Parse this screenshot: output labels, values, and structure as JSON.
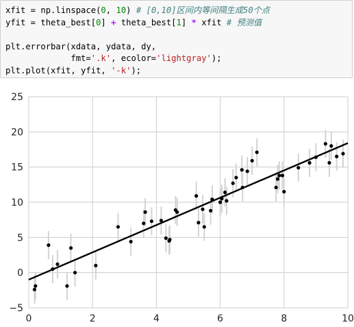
{
  "code_cell": {
    "lines": [
      {
        "tokens": [
          {
            "t": "xfit = np.linspace(",
            "c": ""
          },
          {
            "t": "0",
            "c": "num"
          },
          {
            "t": ", ",
            "c": ""
          },
          {
            "t": "10",
            "c": "num"
          },
          {
            "t": ") ",
            "c": ""
          },
          {
            "t": "# [0,10]区间内等间隔生成50个点",
            "c": "cmt"
          }
        ]
      },
      {
        "tokens": [
          {
            "t": "yfit = theta_best[",
            "c": ""
          },
          {
            "t": "0",
            "c": "num"
          },
          {
            "t": "] ",
            "c": ""
          },
          {
            "t": "+",
            "c": "op"
          },
          {
            "t": " theta_best[",
            "c": ""
          },
          {
            "t": "1",
            "c": "num"
          },
          {
            "t": "] ",
            "c": ""
          },
          {
            "t": "*",
            "c": "op"
          },
          {
            "t": " xfit ",
            "c": ""
          },
          {
            "t": "# 预测值",
            "c": "cmt"
          }
        ]
      },
      {
        "tokens": []
      },
      {
        "tokens": [
          {
            "t": "plt.errorbar(xdata, ydata, dy,",
            "c": ""
          }
        ]
      },
      {
        "tokens": [
          {
            "t": "             fmt=",
            "c": ""
          },
          {
            "t": "'.k'",
            "c": "str"
          },
          {
            "t": ", ecolor=",
            "c": ""
          },
          {
            "t": "'lightgray'",
            "c": "str"
          },
          {
            "t": ");",
            "c": ""
          }
        ]
      },
      {
        "tokens": [
          {
            "t": "plt.plot(xfit, yfit, ",
            "c": ""
          },
          {
            "t": "'-k'",
            "c": "str"
          },
          {
            "t": ");",
            "c": ""
          }
        ]
      }
    ]
  },
  "chart_data": {
    "type": "scatter",
    "title": "",
    "xlabel": "",
    "ylabel": "",
    "xlim": [
      0,
      10
    ],
    "ylim": [
      -5,
      25
    ],
    "x_ticks": [
      "0",
      "2",
      "4",
      "6",
      "8",
      "10"
    ],
    "y_ticks": [
      "−5",
      "0",
      "5",
      "10",
      "15",
      "20",
      "25"
    ],
    "grid": true,
    "colors": {
      "points": "#000000",
      "errorbars": "#d3d3d3",
      "fit_line": "#000000",
      "grid": "#cccccc"
    },
    "error_bar_half_height": 2,
    "points": [
      {
        "x": 0.18,
        "y": -2.4
      },
      {
        "x": 0.21,
        "y": -1.9
      },
      {
        "x": 0.62,
        "y": 3.9
      },
      {
        "x": 0.75,
        "y": 0.5
      },
      {
        "x": 0.9,
        "y": 1.2
      },
      {
        "x": 1.2,
        "y": -1.9
      },
      {
        "x": 1.32,
        "y": 3.5
      },
      {
        "x": 1.45,
        "y": 0.0
      },
      {
        "x": 2.1,
        "y": 1.0
      },
      {
        "x": 2.8,
        "y": 6.5
      },
      {
        "x": 3.2,
        "y": 4.4
      },
      {
        "x": 3.6,
        "y": 7.0
      },
      {
        "x": 3.65,
        "y": 8.6
      },
      {
        "x": 3.85,
        "y": 7.3
      },
      {
        "x": 4.15,
        "y": 7.4
      },
      {
        "x": 4.3,
        "y": 4.9
      },
      {
        "x": 4.4,
        "y": 4.5
      },
      {
        "x": 4.42,
        "y": 4.7
      },
      {
        "x": 4.6,
        "y": 8.9
      },
      {
        "x": 4.65,
        "y": 8.6
      },
      {
        "x": 5.25,
        "y": 10.9
      },
      {
        "x": 5.32,
        "y": 7.1
      },
      {
        "x": 5.45,
        "y": 9.0
      },
      {
        "x": 5.5,
        "y": 6.5
      },
      {
        "x": 5.7,
        "y": 8.8
      },
      {
        "x": 5.75,
        "y": 10.4
      },
      {
        "x": 6.0,
        "y": 10.0
      },
      {
        "x": 6.05,
        "y": 10.5
      },
      {
        "x": 6.15,
        "y": 11.4
      },
      {
        "x": 6.2,
        "y": 10.2
      },
      {
        "x": 6.4,
        "y": 12.7
      },
      {
        "x": 6.5,
        "y": 13.5
      },
      {
        "x": 6.68,
        "y": 14.6
      },
      {
        "x": 6.7,
        "y": 12.1
      },
      {
        "x": 6.85,
        "y": 14.4
      },
      {
        "x": 7.0,
        "y": 15.9
      },
      {
        "x": 7.15,
        "y": 17.1
      },
      {
        "x": 7.75,
        "y": 12.1
      },
      {
        "x": 7.8,
        "y": 13.3
      },
      {
        "x": 7.85,
        "y": 13.8
      },
      {
        "x": 7.95,
        "y": 13.8
      },
      {
        "x": 8.0,
        "y": 11.5
      },
      {
        "x": 8.45,
        "y": 14.9
      },
      {
        "x": 8.8,
        "y": 15.6
      },
      {
        "x": 9.0,
        "y": 16.4
      },
      {
        "x": 9.3,
        "y": 18.3
      },
      {
        "x": 9.42,
        "y": 15.6
      },
      {
        "x": 9.48,
        "y": 18.0
      },
      {
        "x": 9.65,
        "y": 16.5
      },
      {
        "x": 9.85,
        "y": 16.9
      }
    ],
    "fit_line": {
      "x": [
        0,
        10
      ],
      "y": [
        -1.0,
        18.4
      ]
    }
  }
}
